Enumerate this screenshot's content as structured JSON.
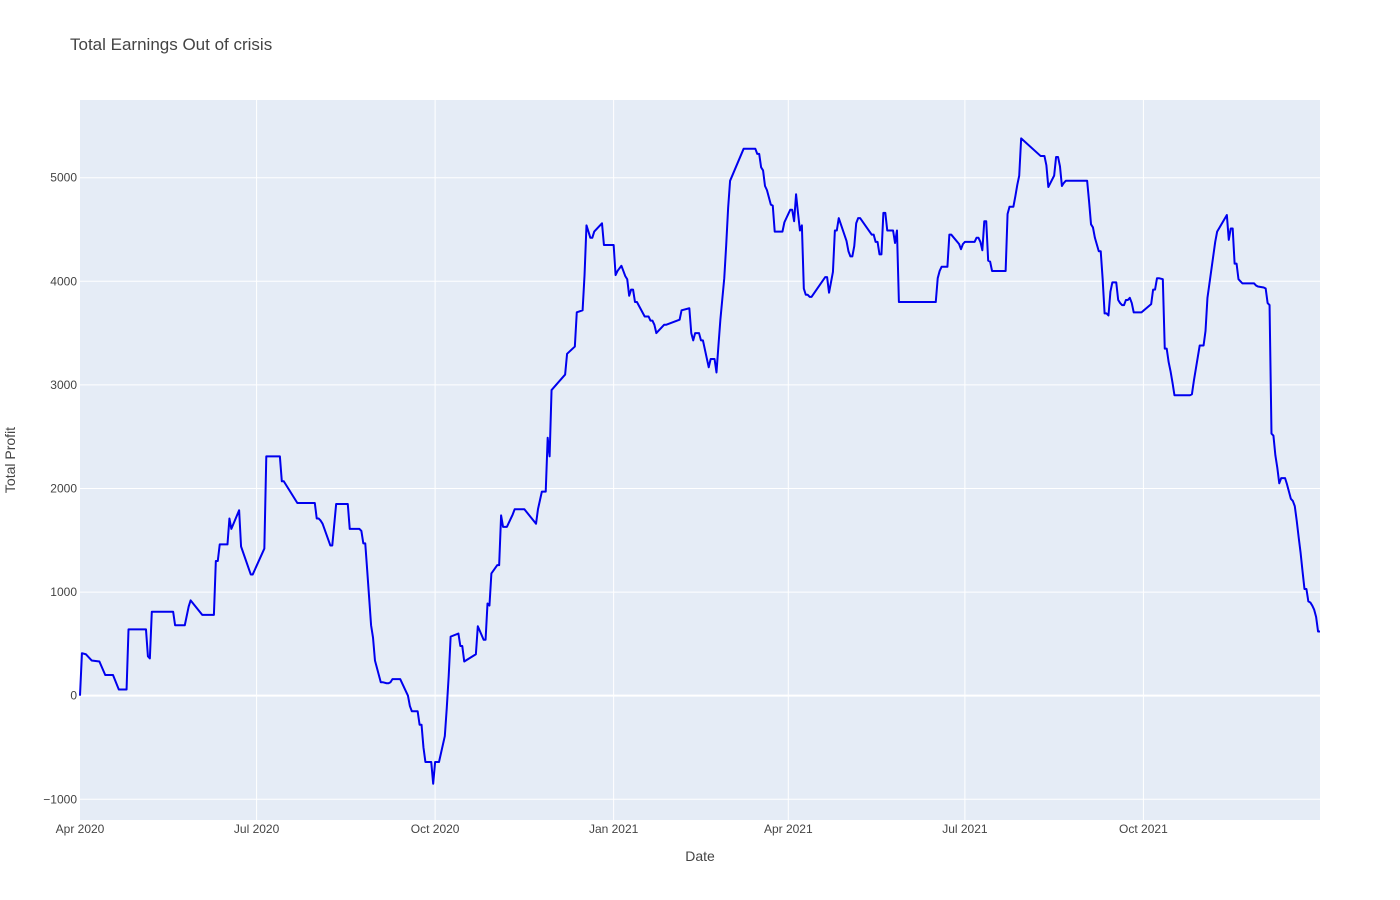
{
  "chart_data": {
    "type": "line",
    "title": "Total Earnings Out of crisis",
    "xlabel": "Date",
    "ylabel": "Total Profit",
    "xlim": [
      "2020-04-01",
      "2021-12-31"
    ],
    "ylim": [
      -1200,
      5750
    ],
    "x_ticks": [
      {
        "value": "2020-04-01",
        "label": "Apr 2020"
      },
      {
        "value": "2020-07-01",
        "label": "Jul 2020"
      },
      {
        "value": "2020-10-01",
        "label": "Oct 2020"
      },
      {
        "value": "2021-01-01",
        "label": "Jan 2021"
      },
      {
        "value": "2021-04-01",
        "label": "Apr 2021"
      },
      {
        "value": "2021-07-01",
        "label": "Jul 2021"
      },
      {
        "value": "2021-10-01",
        "label": "Oct 2021"
      }
    ],
    "y_ticks": [
      {
        "value": -1000,
        "label": "−1000"
      },
      {
        "value": 0,
        "label": "0"
      },
      {
        "value": 1000,
        "label": "1000"
      },
      {
        "value": 2000,
        "label": "2000"
      },
      {
        "value": 3000,
        "label": "3000"
      },
      {
        "value": 4000,
        "label": "4000"
      },
      {
        "value": 5000,
        "label": "5000"
      }
    ],
    "grid": true,
    "legend": "none",
    "colors": {
      "line": "#0000ee",
      "plot_bg": "#e5ecf6",
      "grid": "#ffffff",
      "text": "#444444"
    },
    "series": [
      {
        "x": [
          "2020-04-01",
          "2020-04-02",
          "2020-04-04",
          "2020-04-07",
          "2020-04-11",
          "2020-04-14",
          "2020-04-18",
          "2020-04-21",
          "2020-04-22",
          "2020-04-25",
          "2020-04-26",
          "2020-05-05",
          "2020-05-06",
          "2020-05-07",
          "2020-05-08",
          "2020-05-19",
          "2020-05-20",
          "2020-05-23",
          "2020-05-24",
          "2020-05-25",
          "2020-05-27",
          "2020-05-28",
          "2020-06-03",
          "2020-06-04",
          "2020-06-05",
          "2020-06-06",
          "2020-06-09",
          "2020-06-10",
          "2020-06-11",
          "2020-06-12",
          "2020-06-14",
          "2020-06-15",
          "2020-06-16",
          "2020-06-17",
          "2020-06-18",
          "2020-06-22",
          "2020-06-23",
          "2020-06-28",
          "2020-06-29",
          "2020-07-05",
          "2020-07-06",
          "2020-07-08",
          "2020-07-12",
          "2020-07-13",
          "2020-07-14",
          "2020-07-15",
          "2020-07-22",
          "2020-07-24",
          "2020-07-27",
          "2020-07-31",
          "2020-08-01",
          "2020-08-02",
          "2020-08-03",
          "2020-08-04",
          "2020-08-08",
          "2020-08-09",
          "2020-08-11",
          "2020-08-12",
          "2020-08-17",
          "2020-08-18",
          "2020-08-23",
          "2020-08-24",
          "2020-08-25",
          "2020-08-26",
          "2020-08-27",
          "2020-08-29",
          "2020-08-30",
          "2020-08-31",
          "2020-09-03",
          "2020-09-04",
          "2020-09-06",
          "2020-09-07",
          "2020-09-08",
          "2020-09-09",
          "2020-09-10",
          "2020-09-11",
          "2020-09-12",
          "2020-09-13",
          "2020-09-17",
          "2020-09-18",
          "2020-09-19",
          "2020-09-20",
          "2020-09-22",
          "2020-09-23",
          "2020-09-24",
          "2020-09-25",
          "2020-09-26",
          "2020-09-27",
          "2020-09-29",
          "2020-09-30",
          "2020-10-01",
          "2020-10-03",
          "2020-10-06",
          "2020-10-07",
          "2020-10-08",
          "2020-10-09",
          "2020-10-13",
          "2020-10-14",
          "2020-10-15",
          "2020-10-16",
          "2020-10-22",
          "2020-10-23",
          "2020-10-26",
          "2020-10-27",
          "2020-10-28",
          "2020-10-29",
          "2020-10-30",
          "2020-11-02",
          "2020-11-03",
          "2020-11-04",
          "2020-11-05",
          "2020-11-06",
          "2020-11-07",
          "2020-11-10",
          "2020-11-11",
          "2020-11-15",
          "2020-11-16",
          "2020-11-22",
          "2020-11-23",
          "2020-11-25",
          "2020-11-27",
          "2020-11-28",
          "2020-11-29",
          "2020-11-30",
          "2020-12-07",
          "2020-12-08",
          "2020-12-12",
          "2020-12-13",
          "2020-12-16",
          "2020-12-17",
          "2020-12-18",
          "2020-12-20",
          "2020-12-21",
          "2020-12-22",
          "2020-12-26",
          "2020-12-27",
          "2020-12-28",
          "2020-12-29",
          "2021-01-01",
          "2021-01-02",
          "2021-01-03",
          "2021-01-05",
          "2021-01-06",
          "2021-01-07",
          "2021-01-08",
          "2021-01-09",
          "2021-01-10",
          "2021-01-11",
          "2021-01-12",
          "2021-01-13",
          "2021-01-17",
          "2021-01-18",
          "2021-01-19",
          "2021-01-20",
          "2021-01-21",
          "2021-01-22",
          "2021-01-23",
          "2021-01-27",
          "2021-01-28",
          "2021-02-04",
          "2021-02-05",
          "2021-02-09",
          "2021-02-10",
          "2021-02-11",
          "2021-02-12",
          "2021-02-13",
          "2021-02-14",
          "2021-02-15",
          "2021-02-16",
          "2021-02-19",
          "2021-02-20",
          "2021-02-21",
          "2021-02-22",
          "2021-02-23",
          "2021-02-24",
          "2021-02-25",
          "2021-02-26",
          "2021-02-27",
          "2021-02-28",
          "2021-03-01",
          "2021-03-02",
          "2021-03-09",
          "2021-03-10",
          "2021-03-14",
          "2021-03-15",
          "2021-03-16",
          "2021-03-17",
          "2021-03-18",
          "2021-03-19",
          "2021-03-20",
          "2021-03-21",
          "2021-03-22",
          "2021-03-23",
          "2021-03-24",
          "2021-03-25",
          "2021-03-29",
          "2021-03-30",
          "2021-04-02",
          "2021-04-03",
          "2021-04-04",
          "2021-04-05",
          "2021-04-06",
          "2021-04-07",
          "2021-04-08",
          "2021-04-09",
          "2021-04-10",
          "2021-04-11",
          "2021-04-12",
          "2021-04-13",
          "2021-04-20",
          "2021-04-21",
          "2021-04-22",
          "2021-04-24",
          "2021-04-25",
          "2021-04-26",
          "2021-04-27",
          "2021-05-01",
          "2021-05-02",
          "2021-05-03",
          "2021-05-04",
          "2021-05-05",
          "2021-05-06",
          "2021-05-07",
          "2021-05-08",
          "2021-05-14",
          "2021-05-15",
          "2021-05-16",
          "2021-05-17",
          "2021-05-18",
          "2021-05-19",
          "2021-05-20",
          "2021-05-21",
          "2021-05-22",
          "2021-05-23",
          "2021-05-24",
          "2021-05-25",
          "2021-05-26",
          "2021-05-27",
          "2021-05-28",
          "2021-06-02",
          "2021-06-03",
          "2021-06-04",
          "2021-06-05",
          "2021-06-08",
          "2021-06-09",
          "2021-06-10",
          "2021-06-14",
          "2021-06-15",
          "2021-06-16",
          "2021-06-17",
          "2021-06-18",
          "2021-06-19",
          "2021-06-22",
          "2021-06-23",
          "2021-06-24",
          "2021-06-28",
          "2021-06-29",
          "2021-06-30",
          "2021-07-01",
          "2021-07-05",
          "2021-07-06",
          "2021-07-07",
          "2021-07-08",
          "2021-07-09",
          "2021-07-10",
          "2021-07-11",
          "2021-07-12",
          "2021-07-13",
          "2021-07-14",
          "2021-07-15",
          "2021-07-21",
          "2021-07-22",
          "2021-07-23",
          "2021-07-24",
          "2021-07-25",
          "2021-07-26",
          "2021-07-27",
          "2021-07-28",
          "2021-07-29",
          "2021-07-30",
          "2021-08-09",
          "2021-08-10",
          "2021-08-11",
          "2021-08-12",
          "2021-08-13",
          "2021-08-16",
          "2021-08-17",
          "2021-08-18",
          "2021-08-19",
          "2021-08-20",
          "2021-08-21",
          "2021-08-22",
          "2021-08-24",
          "2021-08-25",
          "2021-08-26",
          "2021-08-27",
          "2021-08-28",
          "2021-09-02",
          "2021-09-03",
          "2021-09-04",
          "2021-09-05",
          "2021-09-06",
          "2021-09-08",
          "2021-09-09",
          "2021-09-10",
          "2021-09-11",
          "2021-09-12",
          "2021-09-13",
          "2021-09-14",
          "2021-09-15",
          "2021-09-17",
          "2021-09-18",
          "2021-09-19",
          "2021-09-20",
          "2021-09-21",
          "2021-09-22",
          "2021-09-23",
          "2021-09-24",
          "2021-09-25",
          "2021-09-26",
          "2021-09-28",
          "2021-09-29",
          "2021-09-30",
          "2021-10-05",
          "2021-10-06",
          "2021-10-07",
          "2021-10-08",
          "2021-10-09",
          "2021-10-11",
          "2021-10-12",
          "2021-10-13",
          "2021-10-14",
          "2021-10-15",
          "2021-10-16",
          "2021-10-17",
          "2021-10-18",
          "2021-10-19",
          "2021-10-20",
          "2021-10-24",
          "2021-10-25",
          "2021-10-26",
          "2021-10-27",
          "2021-10-30",
          "2021-11-01",
          "2021-11-02",
          "2021-11-03",
          "2021-11-07",
          "2021-11-08",
          "2021-11-13",
          "2021-11-14",
          "2021-11-15",
          "2021-11-16",
          "2021-11-17",
          "2021-11-18",
          "2021-11-19",
          "2021-11-20",
          "2021-11-21",
          "2021-11-22",
          "2021-11-23",
          "2021-11-24",
          "2021-11-25",
          "2021-11-26",
          "2021-11-27",
          "2021-11-28",
          "2021-11-29",
          "2021-12-02",
          "2021-12-03",
          "2021-12-04",
          "2021-12-05",
          "2021-12-06",
          "2021-12-07",
          "2021-12-08",
          "2021-12-09",
          "2021-12-10",
          "2021-12-11",
          "2021-12-12",
          "2021-12-13",
          "2021-12-14",
          "2021-12-15",
          "2021-12-16",
          "2021-12-17",
          "2021-12-18",
          "2021-12-19",
          "2021-12-20",
          "2021-12-21",
          "2021-12-22",
          "2021-12-23",
          "2021-12-24",
          "2021-12-25",
          "2021-12-26",
          "2021-12-27",
          "2021-12-28",
          "2021-12-29",
          "2021-12-30",
          "2021-12-31"
        ],
        "y": [
          0,
          410,
          400,
          340,
          330,
          200,
          200,
          60,
          60,
          60,
          640,
          640,
          380,
          360,
          810,
          810,
          680,
          680,
          680,
          680,
          860,
          920,
          780,
          780,
          780,
          780,
          780,
          1300,
          1300,
          1460,
          1460,
          1460,
          1460,
          1710,
          1610,
          1790,
          1440,
          1170,
          1170,
          1420,
          2310,
          2310,
          2310,
          2310,
          2070,
          2070,
          1860,
          1860,
          1860,
          1860,
          1710,
          1710,
          1690,
          1660,
          1450,
          1450,
          1850,
          1850,
          1850,
          1610,
          1610,
          1590,
          1470,
          1470,
          1210,
          680,
          560,
          340,
          130,
          130,
          120,
          120,
          130,
          160,
          160,
          160,
          160,
          160,
          0,
          -100,
          -150,
          -150,
          -150,
          -280,
          -280,
          -500,
          -640,
          -640,
          -640,
          -850,
          -640,
          -640,
          -390,
          -120,
          190,
          570,
          600,
          480,
          480,
          330,
          400,
          670,
          540,
          540,
          890,
          870,
          1180,
          1260,
          1260,
          1740,
          1630,
          1630,
          1630,
          1750,
          1800,
          1800,
          1800,
          1660,
          1800,
          1970,
          1970,
          2490,
          2310,
          2950,
          3100,
          3300,
          3370,
          3700,
          3720,
          4060,
          4540,
          4420,
          4420,
          4480,
          4560,
          4350,
          4350,
          4350,
          4350,
          4060,
          4100,
          4150,
          4100,
          4050,
          4020,
          3860,
          3920,
          3920,
          3800,
          3800,
          3660,
          3660,
          3660,
          3620,
          3620,
          3580,
          3500,
          3580,
          3580,
          3630,
          3720,
          3740,
          3500,
          3430,
          3500,
          3500,
          3500,
          3430,
          3430,
          3170,
          3250,
          3250,
          3250,
          3120,
          3380,
          3630,
          3830,
          4030,
          4350,
          4710,
          4970,
          5280,
          5280,
          5280,
          5280,
          5230,
          5230,
          5100,
          5070,
          4920,
          4880,
          4810,
          4740,
          4730,
          4480,
          4480,
          4570,
          4690,
          4690,
          4580,
          4840,
          4660,
          4490,
          4540,
          3930,
          3870,
          3870,
          3850,
          3850,
          4040,
          4040,
          3890,
          4090,
          4490,
          4490,
          4610,
          4390,
          4290,
          4240,
          4240,
          4340,
          4560,
          4610,
          4610,
          4450,
          4450,
          4380,
          4380,
          4260,
          4260,
          4660,
          4660,
          4490,
          4490,
          4490,
          4490,
          4370,
          4490,
          3800,
          3800,
          3800,
          3800,
          3800,
          3800,
          3800,
          3800,
          3800,
          3800,
          3800,
          4030,
          4100,
          4140,
          4140,
          4450,
          4450,
          4360,
          4310,
          4360,
          4380,
          4380,
          4380,
          4420,
          4420,
          4380,
          4300,
          4580,
          4580,
          4200,
          4190,
          4100,
          4100,
          4100,
          4650,
          4720,
          4720,
          4720,
          4820,
          4930,
          5020,
          5380,
          5210,
          5210,
          5210,
          5120,
          4910,
          5020,
          5200,
          5200,
          5110,
          4920,
          4950,
          4970,
          4970,
          4970,
          4970,
          4970,
          4970,
          4970,
          4770,
          4550,
          4520,
          4420,
          4290,
          4290,
          4020,
          3690,
          3690,
          3670,
          3900,
          3990,
          3990,
          3820,
          3790,
          3770,
          3770,
          3820,
          3820,
          3840,
          3790,
          3700,
          3700,
          3700,
          3700,
          3780,
          3920,
          3920,
          4030,
          4030,
          4020,
          3350,
          3350,
          3220,
          3130,
          3020,
          2900,
          2900,
          2900,
          2900,
          2900,
          2900,
          2910,
          3040,
          3380,
          3380,
          3520,
          3840,
          4380,
          4480,
          4640,
          4400,
          4510,
          4510,
          4170,
          4170,
          4020,
          4000,
          3980,
          3980,
          3980,
          3980,
          3980,
          3980,
          3980,
          3960,
          3950,
          3940,
          3930,
          3790,
          3770,
          2530,
          2510,
          2320,
          2200,
          2050,
          2100,
          2100,
          2100,
          2040,
          1970,
          1900,
          1880,
          1830,
          1690,
          1530,
          1380,
          1200,
          1030,
          1030,
          910,
          900,
          870,
          830,
          760,
          620,
          620
        ]
      }
    ]
  }
}
